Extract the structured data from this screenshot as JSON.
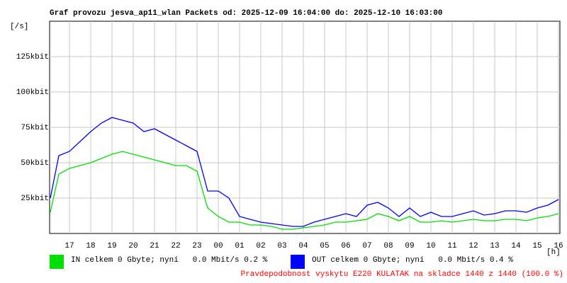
{
  "chart_data": {
    "type": "line",
    "title": "Graf provozu jesva_ap11_wlan Packets od: 2025-12-09 16:04:00 do: 2025-12-10 16:03:00",
    "y_label": "[/s]",
    "x_label": "[h]",
    "x": [
      16.1,
      16.5,
      17,
      17.5,
      18,
      18.5,
      19,
      19.5,
      20,
      20.5,
      21,
      21.5,
      22,
      22.5,
      23,
      23.5,
      24,
      24.5,
      25,
      25.5,
      26,
      26.5,
      27,
      27.5,
      28,
      28.5,
      29,
      29.5,
      30,
      30.5,
      31,
      31.5,
      32,
      32.5,
      33,
      33.5,
      34,
      34.5,
      35,
      35.5,
      36,
      36.5,
      37,
      37.5,
      38,
      38.5,
      39,
      39.5,
      40
    ],
    "series": [
      {
        "name": "IN celkem 0 Gbyte; nyní   0.0 Mbit/s 0.2 %",
        "color": "#00e000",
        "values": [
          15,
          42,
          46,
          48,
          50,
          53,
          56,
          58,
          56,
          54,
          52,
          50,
          48,
          48,
          44,
          18,
          12,
          8,
          8,
          6,
          6,
          5,
          3,
          3,
          4,
          5,
          6,
          8,
          8,
          9,
          10,
          14,
          12,
          9,
          12,
          8,
          8,
          9,
          8,
          9,
          10,
          9,
          9,
          10,
          10,
          9,
          11,
          12,
          14
        ]
      },
      {
        "name": "OUT celkem 0 Gbyte; nyní   0.0 Mbit/s 0.4 %",
        "color": "#0000ff",
        "values": [
          25,
          55,
          58,
          65,
          72,
          78,
          82,
          80,
          78,
          72,
          74,
          70,
          66,
          62,
          58,
          30,
          30,
          25,
          12,
          10,
          8,
          7,
          6,
          5,
          5,
          8,
          10,
          12,
          14,
          12,
          20,
          22,
          18,
          12,
          18,
          12,
          15,
          12,
          12,
          14,
          16,
          13,
          14,
          16,
          16,
          15,
          18,
          20,
          24
        ]
      }
    ],
    "xlim": [
      16.0667,
      40.0667
    ],
    "ylim": [
      0,
      150
    ],
    "xticks": [
      17,
      18,
      19,
      20,
      21,
      22,
      23,
      {
        "value": 24,
        "label": "00"
      },
      {
        "value": 25,
        "label": "01"
      },
      {
        "value": 26,
        "label": "02"
      },
      {
        "value": 27,
        "label": "03"
      },
      {
        "value": 28,
        "label": "04"
      },
      {
        "value": 29,
        "label": "05"
      },
      {
        "value": 30,
        "label": "06"
      },
      {
        "value": 31,
        "label": "07"
      },
      {
        "value": 32,
        "label": "08"
      },
      {
        "value": 33,
        "label": "09"
      },
      {
        "value": 34,
        "label": "10"
      },
      {
        "value": 35,
        "label": "11"
      },
      {
        "value": 36,
        "label": "12"
      },
      {
        "value": 37,
        "label": "13"
      },
      {
        "value": 38,
        "label": "14"
      },
      {
        "value": 39,
        "label": "15"
      },
      {
        "value": 40,
        "label": "16"
      }
    ],
    "yticks": [
      {
        "value": 25,
        "label": "25kbit"
      },
      {
        "value": 50,
        "label": "50kbit"
      },
      {
        "value": 75,
        "label": "75kbit"
      },
      {
        "value": 100,
        "label": "100kbit"
      },
      {
        "value": 125,
        "label": "125kbit"
      }
    ],
    "grid": true,
    "footnote": "Pravdepodobnost vyskytu E220 KULATAK na skladce 1440 z 1440 (100.0 %)"
  }
}
